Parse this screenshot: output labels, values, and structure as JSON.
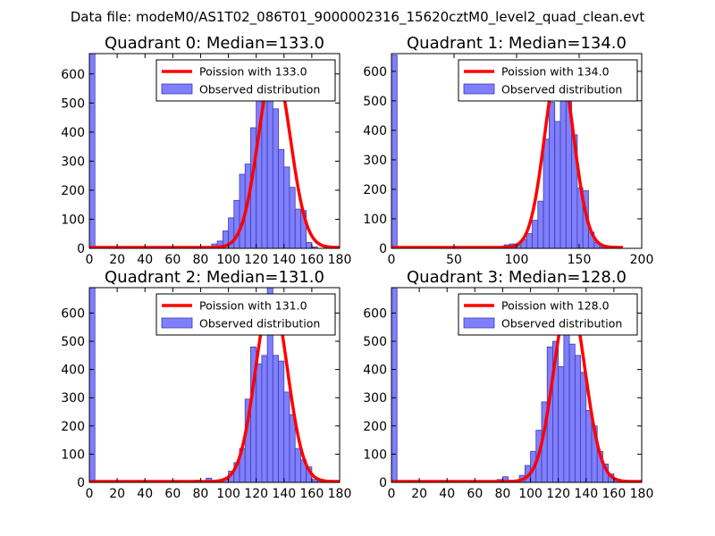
{
  "figure": {
    "suptitle": "Data file: modeM0/AS1T02_086T01_9000002316_15620cztM0_level2_quad_clean.evt"
  },
  "colors": {
    "bar_fill": "#7f7fff",
    "bar_edge": "#3d3da8",
    "line": "#ff0000",
    "axis": "#000000",
    "legend_border": "#000000"
  },
  "chart_data": [
    {
      "type": "bar",
      "title": "Quadrant 0: Median=133.0",
      "xlim": [
        0,
        180
      ],
      "ylim": [
        0,
        670
      ],
      "xticks": [
        0,
        20,
        40,
        60,
        80,
        100,
        120,
        140,
        160,
        180
      ],
      "yticks": [
        0,
        100,
        200,
        300,
        400,
        500,
        600
      ],
      "legend": {
        "loc": "upper-right",
        "line_label": "Poission with 133.0",
        "bar_label": "Observed distribution"
      },
      "bin_width": 4,
      "bars": [
        {
          "x": 0,
          "h": 670
        },
        {
          "x": 80,
          "h": 5
        },
        {
          "x": 88,
          "h": 15
        },
        {
          "x": 92,
          "h": 25
        },
        {
          "x": 96,
          "h": 60
        },
        {
          "x": 100,
          "h": 105
        },
        {
          "x": 104,
          "h": 165
        },
        {
          "x": 108,
          "h": 255
        },
        {
          "x": 112,
          "h": 290
        },
        {
          "x": 116,
          "h": 415
        },
        {
          "x": 120,
          "h": 525
        },
        {
          "x": 124,
          "h": 645
        },
        {
          "x": 128,
          "h": 540
        },
        {
          "x": 132,
          "h": 480
        },
        {
          "x": 136,
          "h": 340
        },
        {
          "x": 140,
          "h": 280
        },
        {
          "x": 144,
          "h": 210
        },
        {
          "x": 148,
          "h": 135
        },
        {
          "x": 152,
          "h": 130
        },
        {
          "x": 156,
          "h": 20
        },
        {
          "x": 160,
          "h": 5
        }
      ],
      "curve": {
        "mean": 133.0,
        "peak": 625,
        "sigma": 11.5,
        "x_start": 0,
        "x_end": 180
      }
    },
    {
      "type": "bar",
      "title": "Quadrant 1: Median=134.0",
      "xlim": [
        0,
        200
      ],
      "ylim": [
        0,
        660
      ],
      "xticks": [
        0,
        50,
        100,
        150,
        200
      ],
      "yticks": [
        0,
        100,
        200,
        300,
        400,
        500,
        600
      ],
      "legend": {
        "loc": "upper-right",
        "line_label": "Poission with 134.0",
        "bar_label": "Observed distribution"
      },
      "bin_width": 4.5,
      "bars": [
        {
          "x": 0,
          "h": 655
        },
        {
          "x": 75,
          "h": 5
        },
        {
          "x": 90,
          "h": 12
        },
        {
          "x": 94.5,
          "h": 15
        },
        {
          "x": 99,
          "h": 10
        },
        {
          "x": 103.5,
          "h": 30
        },
        {
          "x": 108,
          "h": 50
        },
        {
          "x": 112.5,
          "h": 95
        },
        {
          "x": 117,
          "h": 160
        },
        {
          "x": 121.5,
          "h": 370
        },
        {
          "x": 126,
          "h": 495
        },
        {
          "x": 130.5,
          "h": 430
        },
        {
          "x": 135,
          "h": 635
        },
        {
          "x": 139.5,
          "h": 520
        },
        {
          "x": 144,
          "h": 385
        },
        {
          "x": 148.5,
          "h": 205
        },
        {
          "x": 153,
          "h": 195
        },
        {
          "x": 157.5,
          "h": 55
        },
        {
          "x": 162,
          "h": 20
        },
        {
          "x": 166.5,
          "h": 5
        },
        {
          "x": 171,
          "h": 5
        }
      ],
      "curve": {
        "mean": 134.0,
        "peak": 625,
        "sigma": 11.6,
        "x_start": 0,
        "x_end": 185
      }
    },
    {
      "type": "bar",
      "title": "Quadrant 2: Median=131.0",
      "xlim": [
        0,
        180
      ],
      "ylim": [
        0,
        690
      ],
      "xticks": [
        0,
        20,
        40,
        60,
        80,
        100,
        120,
        140,
        160,
        180
      ],
      "yticks": [
        0,
        100,
        200,
        300,
        400,
        500,
        600
      ],
      "legend": {
        "loc": "upper-right",
        "line_label": "Poission with 131.0",
        "bar_label": "Observed distribution"
      },
      "bin_width": 4,
      "bars": [
        {
          "x": 0,
          "h": 690
        },
        {
          "x": 76,
          "h": 8
        },
        {
          "x": 84,
          "h": 15
        },
        {
          "x": 96,
          "h": 10
        },
        {
          "x": 100,
          "h": 40
        },
        {
          "x": 104,
          "h": 70
        },
        {
          "x": 108,
          "h": 120
        },
        {
          "x": 112,
          "h": 295
        },
        {
          "x": 116,
          "h": 480
        },
        {
          "x": 120,
          "h": 420
        },
        {
          "x": 124,
          "h": 450
        },
        {
          "x": 128,
          "h": 690
        },
        {
          "x": 132,
          "h": 450
        },
        {
          "x": 136,
          "h": 430
        },
        {
          "x": 140,
          "h": 320
        },
        {
          "x": 144,
          "h": 240
        },
        {
          "x": 148,
          "h": 120
        },
        {
          "x": 152,
          "h": 80
        },
        {
          "x": 156,
          "h": 55
        },
        {
          "x": 160,
          "h": 10
        },
        {
          "x": 164,
          "h": 5
        }
      ],
      "curve": {
        "mean": 131.0,
        "peak": 660,
        "sigma": 11.4,
        "x_start": 0,
        "x_end": 180
      }
    },
    {
      "type": "bar",
      "title": "Quadrant 3: Median=128.0",
      "xlim": [
        0,
        180
      ],
      "ylim": [
        0,
        690
      ],
      "xticks": [
        0,
        20,
        40,
        60,
        80,
        100,
        120,
        140,
        160,
        180
      ],
      "yticks": [
        0,
        100,
        200,
        300,
        400,
        500,
        600
      ],
      "legend": {
        "loc": "upper-right",
        "line_label": "Poission with 128.0",
        "bar_label": "Observed distribution"
      },
      "bin_width": 4,
      "bars": [
        {
          "x": 0,
          "h": 690
        },
        {
          "x": 72,
          "h": 5
        },
        {
          "x": 76,
          "h": 10
        },
        {
          "x": 80,
          "h": 20
        },
        {
          "x": 92,
          "h": 25
        },
        {
          "x": 96,
          "h": 60
        },
        {
          "x": 100,
          "h": 110
        },
        {
          "x": 104,
          "h": 185
        },
        {
          "x": 108,
          "h": 285
        },
        {
          "x": 112,
          "h": 480
        },
        {
          "x": 116,
          "h": 500
        },
        {
          "x": 120,
          "h": 410
        },
        {
          "x": 124,
          "h": 650
        },
        {
          "x": 128,
          "h": 490
        },
        {
          "x": 132,
          "h": 450
        },
        {
          "x": 136,
          "h": 390
        },
        {
          "x": 140,
          "h": 255
        },
        {
          "x": 144,
          "h": 200
        },
        {
          "x": 148,
          "h": 110
        },
        {
          "x": 152,
          "h": 65
        },
        {
          "x": 156,
          "h": 30
        },
        {
          "x": 160,
          "h": 10
        }
      ],
      "curve": {
        "mean": 128.0,
        "peak": 650,
        "sigma": 11.3,
        "x_start": 0,
        "x_end": 180
      }
    }
  ]
}
